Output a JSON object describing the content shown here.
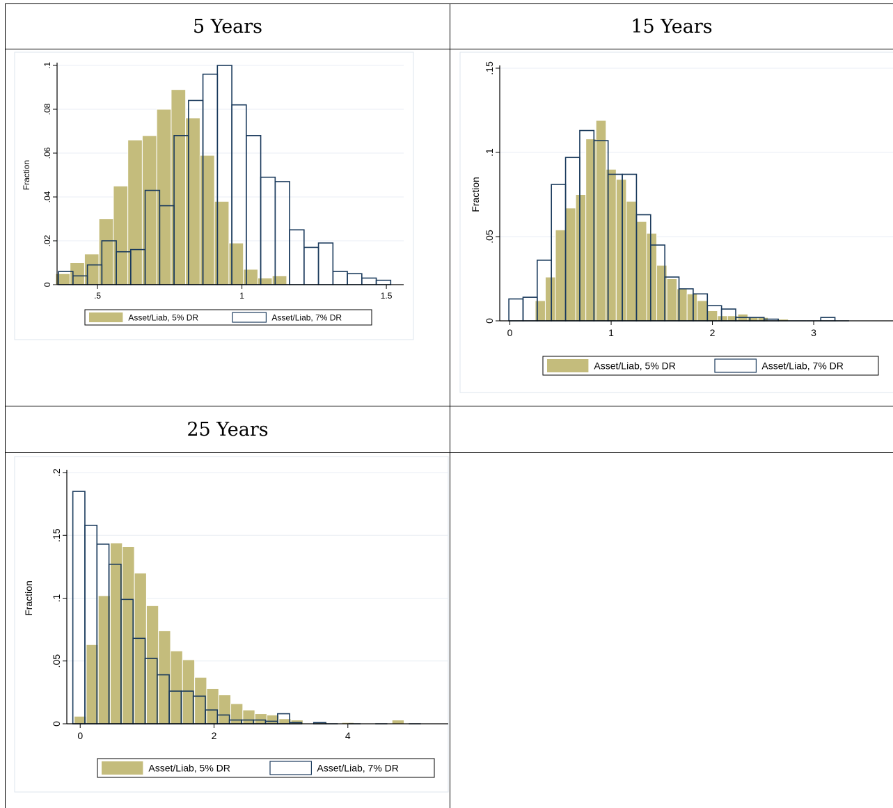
{
  "table": {
    "headers": [
      "5 Years",
      "15 Years",
      "25 Years",
      ""
    ]
  },
  "colors": {
    "series1": "#c4bc7c",
    "series2_stroke": "#1a3a5c",
    "grid": "#e8eef4",
    "plot_border": "#dde6ee"
  },
  "chart_data": [
    {
      "type": "bar",
      "panel_title": "5 Years",
      "ylabel": "Fraction",
      "xlabel": "",
      "xlim": [
        0.36,
        1.56
      ],
      "ylim": [
        0,
        0.1
      ],
      "xticks": [
        0.5,
        1,
        1.5
      ],
      "xtick_labels": [
        ".5",
        "1",
        "1.5"
      ],
      "yticks": [
        0,
        0.02,
        0.04,
        0.06,
        0.08,
        0.1
      ],
      "ytick_labels": [
        "0",
        ".02",
        ".04",
        ".06",
        ".08",
        ".1"
      ],
      "grid": true,
      "legend_position": "bottom",
      "series": [
        {
          "name": "Asset/Liab, 5% DR",
          "style": "filled",
          "x": [
            0.38,
            0.43,
            0.48,
            0.53,
            0.58,
            0.63,
            0.68,
            0.73,
            0.78,
            0.83,
            0.88,
            0.93,
            0.98,
            1.03,
            1.08,
            1.13
          ],
          "y": [
            0.005,
            0.01,
            0.014,
            0.03,
            0.045,
            0.066,
            0.068,
            0.08,
            0.089,
            0.076,
            0.059,
            0.038,
            0.019,
            0.007,
            0.003,
            0.004
          ],
          "w": 0.05
        },
        {
          "name": "Asset/Liab, 7% DR",
          "style": "outline",
          "x": [
            0.39,
            0.44,
            0.49,
            0.54,
            0.59,
            0.64,
            0.69,
            0.74,
            0.79,
            0.84,
            0.89,
            0.94,
            0.99,
            1.04,
            1.09,
            1.14,
            1.19,
            1.24,
            1.29,
            1.34,
            1.39,
            1.44,
            1.49
          ],
          "y": [
            0.006,
            0.004,
            0.009,
            0.02,
            0.015,
            0.016,
            0.043,
            0.036,
            0.068,
            0.084,
            0.096,
            0.1,
            0.082,
            0.068,
            0.049,
            0.047,
            0.025,
            0.017,
            0.019,
            0.006,
            0.005,
            0.003,
            0.002
          ],
          "w": 0.05
        }
      ]
    },
    {
      "type": "bar",
      "panel_title": "15 Years",
      "ylabel": "Fraction",
      "xlabel": "",
      "xlim": [
        -0.1,
        3.9
      ],
      "ylim": [
        0,
        0.15
      ],
      "xticks": [
        0,
        1,
        2,
        3
      ],
      "xtick_labels": [
        "0",
        "1",
        "2",
        "3"
      ],
      "yticks": [
        0,
        0.05,
        0.1,
        0.15
      ],
      "ytick_labels": [
        "0",
        ".05",
        ".1",
        ".15"
      ],
      "grid": true,
      "legend_position": "bottom",
      "series": [
        {
          "name": "Asset/Liab, 5% DR",
          "style": "filled",
          "x": [
            0.3,
            0.4,
            0.5,
            0.6,
            0.7,
            0.8,
            0.9,
            1.0,
            1.1,
            1.2,
            1.3,
            1.4,
            1.5,
            1.6,
            1.7,
            1.8,
            1.9,
            2.0,
            2.1,
            2.2,
            2.3,
            2.4,
            2.5,
            2.7
          ],
          "y": [
            0.012,
            0.026,
            0.054,
            0.067,
            0.075,
            0.108,
            0.119,
            0.09,
            0.084,
            0.071,
            0.059,
            0.052,
            0.033,
            0.025,
            0.019,
            0.016,
            0.012,
            0.006,
            0.003,
            0.003,
            0.004,
            0.002,
            0.002,
            0.001
          ],
          "w": 0.1
        },
        {
          "name": "Asset/Liab, 7% DR",
          "style": "outline",
          "x": [
            0.06,
            0.2,
            0.34,
            0.48,
            0.62,
            0.76,
            0.9,
            1.04,
            1.18,
            1.32,
            1.46,
            1.6,
            1.74,
            1.88,
            2.02,
            2.16,
            2.3,
            2.44,
            2.58,
            2.72,
            2.86,
            3.0,
            3.14,
            3.28
          ],
          "y": [
            0.013,
            0.014,
            0.036,
            0.081,
            0.097,
            0.113,
            0.107,
            0.087,
            0.087,
            0.063,
            0.045,
            0.026,
            0.019,
            0.016,
            0.009,
            0.007,
            0.002,
            0.002,
            0.001,
            0.0,
            0.0,
            0.0,
            0.002,
            0.0
          ],
          "w": 0.14
        }
      ]
    },
    {
      "type": "bar",
      "panel_title": "25 Years",
      "ylabel": "Fraction",
      "xlabel": "",
      "xlim": [
        -0.2,
        5.5
      ],
      "ylim": [
        0,
        0.2
      ],
      "xticks": [
        0,
        2,
        4
      ],
      "xtick_labels": [
        "0",
        "2",
        "4"
      ],
      "yticks": [
        0,
        0.05,
        0.1,
        0.15,
        0.2
      ],
      "ytick_labels": [
        "0",
        ".05",
        ".1",
        ".15",
        ".2"
      ],
      "grid": true,
      "legend_position": "bottom",
      "series": [
        {
          "name": "Asset/Liab, 5% DR",
          "style": "filled",
          "x": [
            0,
            0.18,
            0.36,
            0.54,
            0.72,
            0.9,
            1.08,
            1.26,
            1.44,
            1.62,
            1.8,
            1.98,
            2.16,
            2.34,
            2.52,
            2.7,
            2.88,
            3.06,
            3.24,
            3.6,
            4.0,
            4.75
          ],
          "y": [
            0.006,
            0.063,
            0.102,
            0.144,
            0.141,
            0.12,
            0.094,
            0.074,
            0.058,
            0.051,
            0.037,
            0.028,
            0.023,
            0.016,
            0.011,
            0.008,
            0.007,
            0.004,
            0.003,
            0.001,
            0.001,
            0.003
          ],
          "w": 0.18
        },
        {
          "name": "Asset/Liab, 7% DR",
          "style": "outline",
          "x": [
            -0.02,
            0.16,
            0.34,
            0.52,
            0.7,
            0.88,
            1.06,
            1.24,
            1.42,
            1.6,
            1.78,
            1.96,
            2.14,
            2.32,
            2.5,
            2.68,
            2.86,
            3.04,
            3.22,
            3.58,
            3.76,
            4.1,
            4.5,
            5.0
          ],
          "y": [
            0.185,
            0.158,
            0.143,
            0.127,
            0.099,
            0.068,
            0.052,
            0.039,
            0.026,
            0.026,
            0.022,
            0.011,
            0.007,
            0.003,
            0.003,
            0.003,
            0.002,
            0.008,
            0.001,
            0.001,
            0.0,
            0.0,
            0.0,
            0.0
          ],
          "w": 0.18
        }
      ]
    }
  ]
}
